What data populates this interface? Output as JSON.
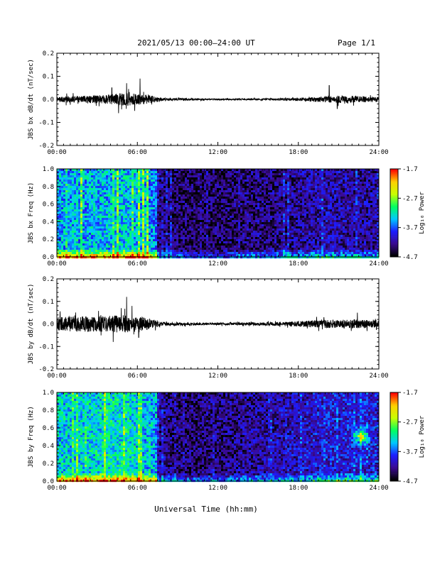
{
  "header": {
    "title": "2021/05/13  00:00–24:00 UT",
    "page": "Page 1/1"
  },
  "xlabel": "Universal Time (hh:mm)",
  "colors": {
    "trace": "#000000",
    "colormap": [
      "#000000",
      "#3a0a8f",
      "#1c1cff",
      "#00c8ff",
      "#00ff60",
      "#c8ff00",
      "#ffd000",
      "#ff0000"
    ]
  },
  "chart_data": [
    {
      "type": "line",
      "ylabel": "JBS bx dB/dt (nT/sec)",
      "xlim": [
        0,
        24
      ],
      "ylim": [
        -0.2,
        0.2
      ],
      "yticks": [
        "0.2",
        "0.1",
        "0.0",
        "-0.1",
        "-0.2"
      ],
      "yticks_values": [
        0.2,
        0.1,
        0.0,
        -0.1,
        -0.2
      ],
      "xticks": [
        "00:00",
        "06:00",
        "12:00",
        "18:00",
        "24:00"
      ],
      "xticks_values": [
        0,
        6,
        12,
        18,
        24
      ],
      "envelope_hours": [
        0,
        1,
        2,
        3,
        4,
        5,
        6,
        7,
        7.5,
        8,
        10,
        12,
        14,
        16,
        18,
        19,
        20,
        21,
        22,
        23,
        24
      ],
      "envelope_amp": [
        0.013,
        0.014,
        0.016,
        0.018,
        0.022,
        0.028,
        0.024,
        0.018,
        0.01,
        0.006,
        0.004,
        0.003,
        0.003,
        0.004,
        0.007,
        0.01,
        0.013,
        0.016,
        0.015,
        0.013,
        0.012
      ],
      "spikes": [
        [
          4.1,
          0.05
        ],
        [
          4.6,
          -0.06
        ],
        [
          5.2,
          0.07
        ],
        [
          6.2,
          0.09
        ],
        [
          5.8,
          -0.05
        ],
        [
          20.3,
          0.06
        ],
        [
          20.9,
          -0.04
        ]
      ]
    },
    {
      "type": "heatmap",
      "ylabel": "JBS bx Freq (Hz)",
      "xlim": [
        0,
        24
      ],
      "ylim": [
        0.0,
        1.0
      ],
      "yticks": [
        "1.0",
        "0.8",
        "0.6",
        "0.4",
        "0.2",
        "0.0"
      ],
      "yticks_values": [
        1.0,
        0.8,
        0.6,
        0.4,
        0.2,
        0.0
      ],
      "xticks": [
        "00:00",
        "06:00",
        "12:00",
        "18:00",
        "24:00"
      ],
      "xticks_values": [
        0,
        6,
        12,
        18,
        24
      ],
      "colorbar_label": "Log₁₀ Power",
      "colorbar_ticks": [
        "-1.7",
        "-2.7",
        "-3.7",
        "-4.7"
      ],
      "colorbar_values": [
        -1.7,
        -2.7,
        -3.7,
        -4.7
      ],
      "activity_hours": [
        0,
        2,
        4,
        5,
        6,
        7,
        7.4,
        7.6,
        10,
        12,
        14,
        16,
        18,
        20,
        22,
        24
      ],
      "activity_level": [
        0.55,
        0.55,
        0.58,
        0.6,
        0.58,
        0.52,
        0.5,
        0.15,
        0.12,
        0.12,
        0.14,
        0.16,
        0.2,
        0.24,
        0.22,
        0.2
      ]
    },
    {
      "type": "line",
      "ylabel": "JBS by dB/dt (nT/sec)",
      "xlim": [
        0,
        24
      ],
      "ylim": [
        -0.2,
        0.2
      ],
      "yticks": [
        "0.2",
        "0.1",
        "0.0",
        "-0.1",
        "-0.2"
      ],
      "yticks_values": [
        0.2,
        0.1,
        0.0,
        -0.1,
        -0.2
      ],
      "xticks": [
        "00:00",
        "06:00",
        "12:00",
        "18:00",
        "24:00"
      ],
      "xticks_values": [
        0,
        6,
        12,
        18,
        24
      ],
      "envelope_hours": [
        0,
        1,
        2,
        3,
        4,
        5,
        6,
        7,
        7.5,
        8,
        10,
        12,
        14,
        16,
        18,
        19,
        20,
        21,
        22,
        23,
        24
      ],
      "envelope_amp": [
        0.03,
        0.034,
        0.036,
        0.034,
        0.036,
        0.04,
        0.034,
        0.024,
        0.014,
        0.008,
        0.006,
        0.005,
        0.006,
        0.008,
        0.012,
        0.016,
        0.018,
        0.018,
        0.02,
        0.018,
        0.016
      ],
      "spikes": [
        [
          4.2,
          -0.08
        ],
        [
          4.8,
          0.07
        ],
        [
          5.2,
          0.12
        ],
        [
          5.6,
          0.08
        ],
        [
          6.1,
          -0.06
        ],
        [
          22.4,
          0.05
        ]
      ]
    },
    {
      "type": "heatmap",
      "ylabel": "JBS by Freq (Hz)",
      "xlim": [
        0,
        24
      ],
      "ylim": [
        0.0,
        1.0
      ],
      "yticks": [
        "1.0",
        "0.8",
        "0.6",
        "0.4",
        "0.2",
        "0.0"
      ],
      "yticks_values": [
        1.0,
        0.8,
        0.6,
        0.4,
        0.2,
        0.0
      ],
      "xticks": [
        "00:00",
        "06:00",
        "12:00",
        "18:00",
        "24:00"
      ],
      "xticks_values": [
        0,
        6,
        12,
        18,
        24
      ],
      "colorbar_label": "Log₁₀ Power",
      "colorbar_ticks": [
        "-1.7",
        "-2.7",
        "-3.7",
        "-4.7"
      ],
      "colorbar_values": [
        -1.7,
        -2.7,
        -3.7,
        -4.7
      ],
      "activity_hours": [
        0,
        2,
        4,
        5,
        6,
        7,
        7.4,
        7.6,
        10,
        12,
        14,
        16,
        18,
        20,
        22,
        24
      ],
      "activity_level": [
        0.6,
        0.62,
        0.64,
        0.66,
        0.62,
        0.56,
        0.54,
        0.18,
        0.15,
        0.16,
        0.2,
        0.22,
        0.26,
        0.3,
        0.32,
        0.3
      ],
      "feature": {
        "hour": 22.7,
        "freq": 0.5,
        "strength": 0.45
      }
    }
  ]
}
